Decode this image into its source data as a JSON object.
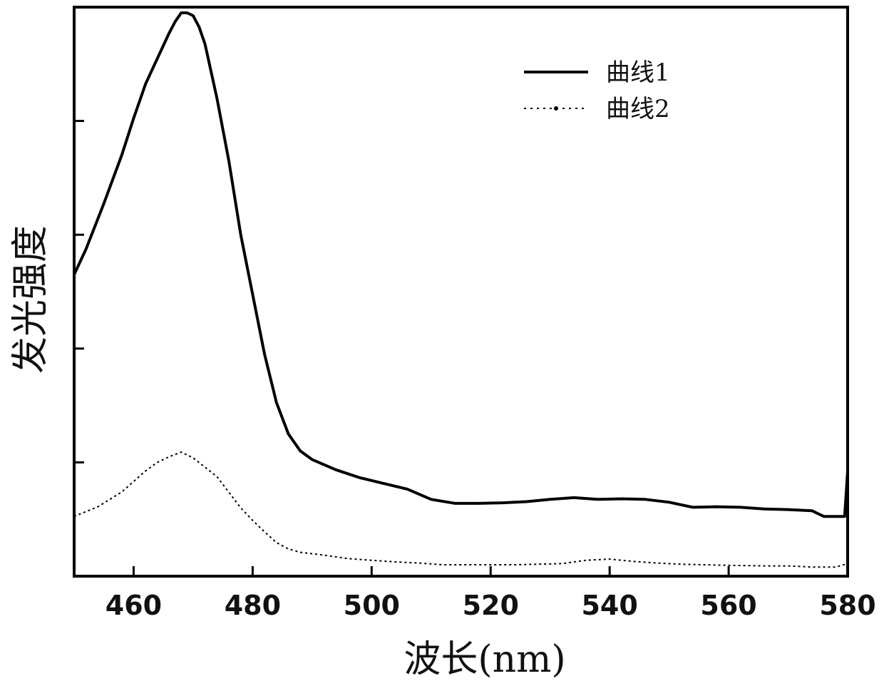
{
  "chart_data": {
    "type": "line",
    "title": "",
    "xlabel": "波长(nm)",
    "ylabel": "发光强度",
    "xlim": [
      450,
      580
    ],
    "ylim": [
      0,
      100
    ],
    "x_ticks": [
      460,
      480,
      500,
      520,
      540,
      560,
      580
    ],
    "y_ticks": [
      20,
      40,
      60,
      80,
      100
    ],
    "y_tick_labels_shown": false,
    "grid": false,
    "legend_position": "top-right",
    "series": [
      {
        "name": "曲线1",
        "style": "solid",
        "color": "#000000",
        "x": [
          450,
          452,
          455,
          458,
          460,
          462,
          464,
          466,
          467,
          468,
          469,
          470,
          471,
          472,
          474,
          476,
          478,
          480,
          482,
          484,
          486,
          488,
          490,
          494,
          498,
          502,
          506,
          510,
          514,
          518,
          522,
          526,
          530,
          534,
          538,
          542,
          546,
          550,
          554,
          558,
          562,
          566,
          570,
          574,
          576,
          578,
          579.5,
          580
        ],
        "y": [
          53.0,
          57.5,
          65.5,
          74.0,
          80.5,
          86.5,
          91.0,
          95.5,
          97.5,
          99.0,
          99.0,
          98.5,
          96.5,
          93.5,
          84.0,
          73.0,
          60.0,
          49.5,
          39.0,
          30.5,
          25.0,
          22.0,
          20.5,
          18.7,
          17.3,
          16.3,
          15.3,
          13.5,
          12.8,
          12.8,
          12.9,
          13.1,
          13.5,
          13.8,
          13.5,
          13.6,
          13.5,
          13.0,
          12.1,
          12.2,
          12.1,
          11.8,
          11.7,
          11.5,
          10.5,
          10.5,
          10.5,
          18.5
        ]
      },
      {
        "name": "曲线2",
        "style": "dotted",
        "color": "#000000",
        "x": [
          450,
          454,
          458,
          462,
          464,
          466,
          468,
          470,
          474,
          478,
          480,
          482,
          484,
          486,
          488,
          492,
          496,
          500,
          504,
          508,
          512,
          516,
          520,
          524,
          528,
          532,
          536,
          540,
          544,
          548,
          552,
          556,
          560,
          566,
          570,
          574,
          578,
          580
        ],
        "y": [
          10.5,
          12.2,
          14.8,
          18.5,
          20.0,
          21.0,
          21.8,
          20.8,
          17.5,
          12.0,
          9.8,
          7.8,
          5.9,
          4.8,
          4.2,
          3.7,
          3.1,
          2.8,
          2.5,
          2.3,
          2.0,
          2.0,
          2.0,
          2.0,
          2.1,
          2.2,
          2.8,
          3.0,
          2.6,
          2.3,
          2.1,
          2.0,
          1.9,
          1.8,
          1.8,
          1.6,
          1.6,
          2.2
        ]
      }
    ]
  }
}
